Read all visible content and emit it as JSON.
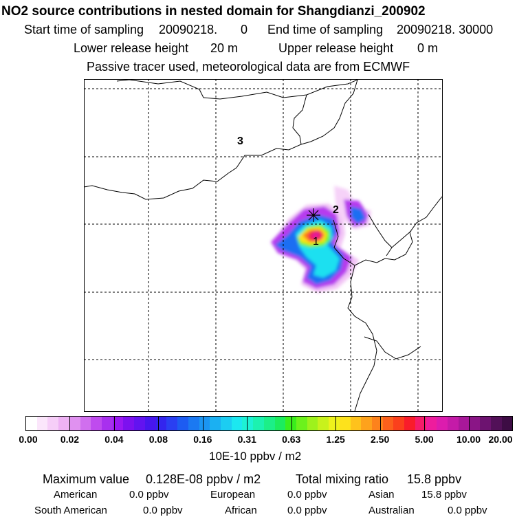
{
  "header": {
    "title": "NO2 source contributions in nested domain for Shangdianzi_200902",
    "start_label": "Start time of sampling",
    "start_value": "20090218.",
    "start_hour": "0",
    "end_label": "End time of sampling",
    "end_value": "20090218. 30000",
    "lower_label": "Lower release height",
    "lower_value": "20 m",
    "upper_label": "Upper release height",
    "upper_value": "0 m",
    "tracer_note": "Passive tracer used, meteorological data are from ECMWF"
  },
  "map": {
    "region_labels": [
      "1",
      "2",
      "3"
    ],
    "receptor_marker": "asterisk-icon"
  },
  "colorbar": {
    "tick_labels": [
      "0.00",
      "0.02",
      "0.04",
      "0.08",
      "0.16",
      "0.31",
      "0.63",
      "1.25",
      "2.50",
      "5.00",
      "10.00",
      "20.00"
    ],
    "unit": "10E-10 ppbv / m2",
    "colors": [
      "#ffffff",
      "#fbe6fb",
      "#f6cef8",
      "#eeb2f4",
      "#e091f0",
      "#d06fee",
      "#bf4bee",
      "#a830ee",
      "#9a18f2",
      "#7c11ef",
      "#6213f0",
      "#4716ee",
      "#3325ee",
      "#2a3ff2",
      "#1d5cf2",
      "#1b79f2",
      "#1b95f2",
      "#1bb0f2",
      "#1ccdf2",
      "#1ce8f0",
      "#1df2d5",
      "#1cf2b0",
      "#1cef88",
      "#1cec5e",
      "#3aee1c",
      "#6cf21c",
      "#9ef21c",
      "#c8f21c",
      "#eef21c",
      "#fde21c",
      "#fec21c",
      "#fea21c",
      "#fd821c",
      "#fc601c",
      "#fb401c",
      "#f91c2a",
      "#f51c6a",
      "#ee1c9d",
      "#dc1cae",
      "#c41ba8",
      "#a8189a",
      "#8a1586",
      "#6d1370",
      "#521058",
      "#3d0c44"
    ]
  },
  "summary": {
    "max_label": "Maximum value",
    "max_value": "0.128E-08 ppbv / m2",
    "total_label": "Total mixing ratio",
    "total_value": "15.8 ppbv",
    "regions": [
      {
        "name": "American",
        "value": "0.0 ppbv"
      },
      {
        "name": "European",
        "value": "0.0 ppbv"
      },
      {
        "name": "Asian",
        "value": "15.8 ppbv"
      },
      {
        "name": "South American",
        "value": "0.0 ppbv"
      },
      {
        "name": "African",
        "value": "0.0 ppbv"
      },
      {
        "name": "Australian",
        "value": "0.0 ppbv"
      }
    ]
  }
}
